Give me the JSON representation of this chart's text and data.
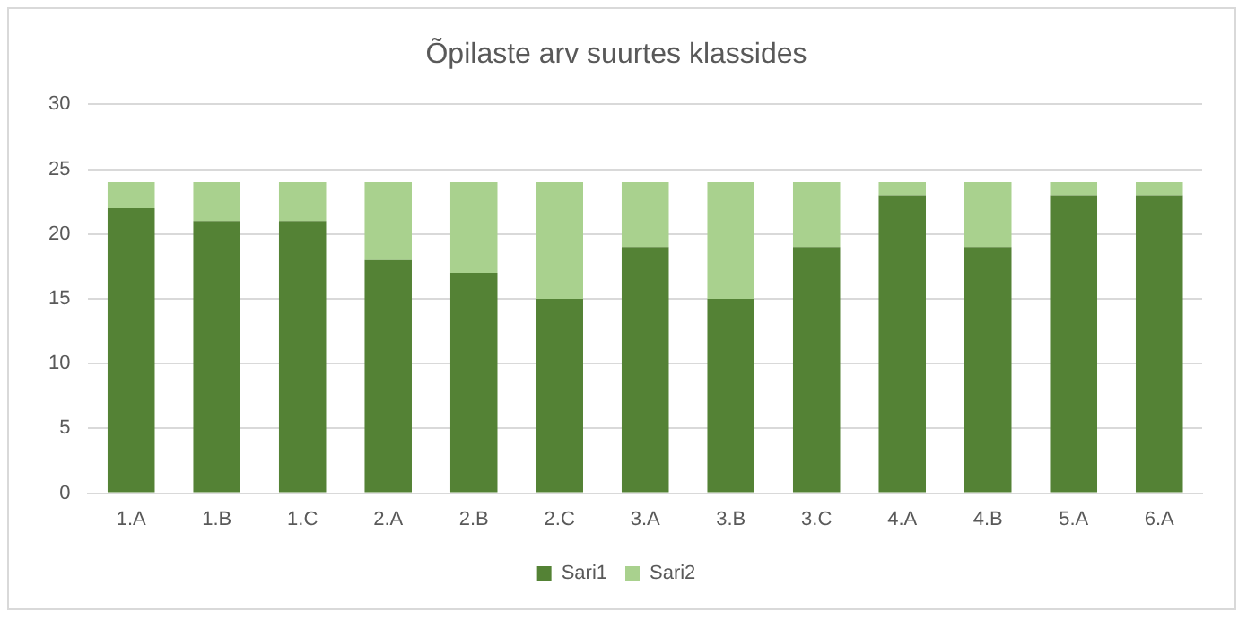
{
  "chart_data": {
    "type": "bar",
    "title": "Õpilaste arv suurtes klassides",
    "categories": [
      "1.A",
      "1.B",
      "1.C",
      "2.A",
      "2.B",
      "2.C",
      "3.A",
      "3.B",
      "3.C",
      "4.A",
      "4.B",
      "5.A",
      "6.A"
    ],
    "series": [
      {
        "name": "Sari1",
        "color": "#548235",
        "values": [
          22,
          21,
          21,
          18,
          17,
          15,
          19,
          15,
          19,
          23,
          19,
          23,
          23
        ]
      },
      {
        "name": "Sari2",
        "color": "#a9d18e",
        "values": [
          2,
          3,
          3,
          6,
          7,
          9,
          5,
          9,
          5,
          1,
          5,
          1,
          1
        ]
      }
    ],
    "stacked": true,
    "ylim": [
      0,
      30
    ],
    "yticks": [
      0,
      5,
      10,
      15,
      20,
      25,
      30
    ],
    "grid": "y",
    "legend": "bottom"
  }
}
